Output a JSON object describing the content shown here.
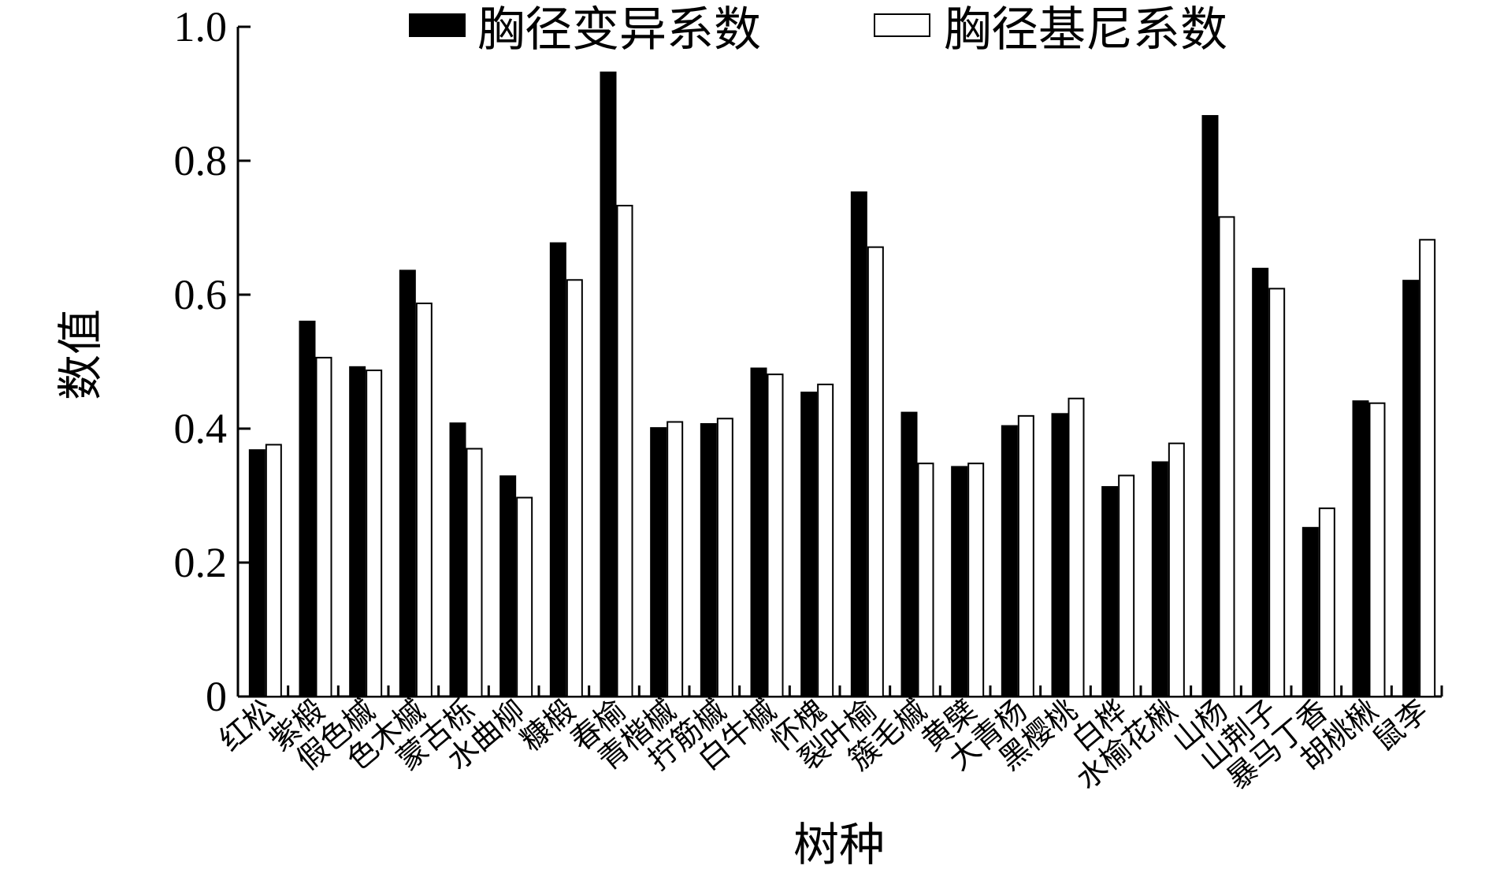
{
  "chart_data": {
    "type": "bar",
    "title": "",
    "xlabel": "树种",
    "ylabel": "数值",
    "ylim": [
      0,
      1.0
    ],
    "yticks": [
      {
        "value": 0,
        "label": "0"
      },
      {
        "value": 0.2,
        "label": "0.2"
      },
      {
        "value": 0.4,
        "label": "0.4"
      },
      {
        "value": 0.6,
        "label": "0.6"
      },
      {
        "value": 0.8,
        "label": "0.8"
      },
      {
        "value": 1.0,
        "label": "1.0"
      }
    ],
    "legend_position": "top",
    "grid": false,
    "categories": [
      "红松",
      "紫椴",
      "假色槭",
      "色木槭",
      "蒙古栎",
      "水曲柳",
      "糠椴",
      "春榆",
      "青楷槭",
      "拧筋槭",
      "白牛槭",
      "怀槐",
      "裂叶榆",
      "簇毛槭",
      "黄檗",
      "大青杨",
      "黑樱桃",
      "白桦",
      "水榆花楸",
      "山杨",
      "山荆子",
      "暴马丁香",
      "胡桃楸",
      "鼠李"
    ],
    "series": [
      {
        "name": "胸径变异系数",
        "color": "#000000",
        "values": [
          0.368,
          0.56,
          0.492,
          0.636,
          0.408,
          0.329,
          0.677,
          0.932,
          0.401,
          0.407,
          0.49,
          0.454,
          0.753,
          0.424,
          0.343,
          0.404,
          0.422,
          0.313,
          0.35,
          0.867,
          0.639,
          0.252,
          0.441,
          0.621
        ]
      },
      {
        "name": "胸径基尼系数",
        "color": "#ffffff",
        "values": [
          0.376,
          0.506,
          0.487,
          0.587,
          0.37,
          0.297,
          0.622,
          0.733,
          0.41,
          0.415,
          0.481,
          0.466,
          0.671,
          0.348,
          0.348,
          0.419,
          0.445,
          0.33,
          0.378,
          0.716,
          0.609,
          0.281,
          0.438,
          0.682
        ]
      }
    ]
  }
}
